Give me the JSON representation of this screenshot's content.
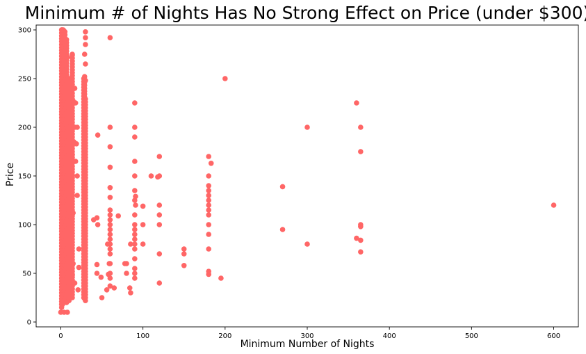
{
  "chart_data": {
    "type": "scatter",
    "title": "Minimum # of Nights Has No Strong Effect on Price (under $300)",
    "xlabel": "Minimum Number of Nights",
    "ylabel": "Price",
    "xlim": [
      -30,
      630
    ],
    "ylim": [
      -5,
      305
    ],
    "xticks": [
      0,
      100,
      200,
      300,
      400,
      500,
      600
    ],
    "yticks": [
      0,
      50,
      100,
      150,
      200,
      250,
      300
    ],
    "grid": false,
    "marker_color": "#ff6666",
    "columns": [
      {
        "x": 1,
        "min": 15,
        "max": 300
      },
      {
        "x": 2,
        "min": 18,
        "max": 300
      },
      {
        "x": 3,
        "min": 20,
        "max": 300
      },
      {
        "x": 4,
        "min": 20,
        "max": 300
      },
      {
        "x": 5,
        "min": 22,
        "max": 300
      },
      {
        "x": 7,
        "min": 20,
        "max": 290
      },
      {
        "x": 10,
        "min": 22,
        "max": 250
      },
      {
        "x": 14,
        "min": 25,
        "max": 275
      },
      {
        "x": 28,
        "min": 25,
        "max": 250
      },
      {
        "x": 29,
        "min": 24,
        "max": 250
      },
      {
        "x": 30,
        "min": 22,
        "max": 230
      }
    ],
    "points": [
      [
        0,
        10
      ],
      [
        4,
        10
      ],
      [
        8,
        10
      ],
      [
        1,
        300
      ],
      [
        2,
        300
      ],
      [
        3,
        300
      ],
      [
        5,
        295
      ],
      [
        4,
        290
      ],
      [
        6,
        285
      ],
      [
        2,
        275
      ],
      [
        7,
        273
      ],
      [
        8,
        272
      ],
      [
        14,
        275
      ],
      [
        3,
        265
      ],
      [
        5,
        258
      ],
      [
        9,
        250
      ],
      [
        10,
        238
      ],
      [
        13,
        250
      ],
      [
        12,
        225
      ],
      [
        15,
        227
      ],
      [
        17,
        240
      ],
      [
        18,
        225
      ],
      [
        11,
        200
      ],
      [
        12,
        197
      ],
      [
        17,
        200
      ],
      [
        16,
        185
      ],
      [
        14,
        172
      ],
      [
        13,
        160
      ],
      [
        20,
        200
      ],
      [
        19,
        183
      ],
      [
        18,
        165
      ],
      [
        20,
        150
      ],
      [
        20,
        130
      ],
      [
        15,
        112
      ],
      [
        12,
        105
      ],
      [
        10,
        115
      ],
      [
        22,
        75
      ],
      [
        22,
        56
      ],
      [
        15,
        60
      ],
      [
        12,
        35
      ],
      [
        14,
        48
      ],
      [
        17,
        40
      ],
      [
        21,
        33
      ],
      [
        30,
        298
      ],
      [
        30,
        292
      ],
      [
        30,
        285
      ],
      [
        29,
        275
      ],
      [
        30,
        265
      ],
      [
        29,
        252
      ],
      [
        30,
        248
      ],
      [
        40,
        105
      ],
      [
        44,
        107
      ],
      [
        45,
        100
      ],
      [
        45,
        192
      ],
      [
        44,
        59
      ],
      [
        44,
        50
      ],
      [
        49,
        46
      ],
      [
        50,
        25
      ],
      [
        56,
        33
      ],
      [
        57,
        80
      ],
      [
        58,
        49
      ],
      [
        59,
        60
      ],
      [
        60,
        292
      ],
      [
        60,
        200
      ],
      [
        60,
        180
      ],
      [
        60,
        159
      ],
      [
        60,
        138
      ],
      [
        60,
        128
      ],
      [
        60,
        115
      ],
      [
        60,
        110
      ],
      [
        60,
        105
      ],
      [
        60,
        100
      ],
      [
        60,
        95
      ],
      [
        60,
        90
      ],
      [
        60,
        85
      ],
      [
        60,
        80
      ],
      [
        60,
        75
      ],
      [
        60,
        70
      ],
      [
        60,
        60
      ],
      [
        60,
        50
      ],
      [
        60,
        45
      ],
      [
        60,
        37
      ],
      [
        65,
        35
      ],
      [
        70,
        109
      ],
      [
        78,
        60
      ],
      [
        80,
        60
      ],
      [
        80,
        50
      ],
      [
        84,
        35
      ],
      [
        85,
        30
      ],
      [
        85,
        80
      ],
      [
        90,
        225
      ],
      [
        90,
        200
      ],
      [
        90,
        190
      ],
      [
        90,
        165
      ],
      [
        90,
        150
      ],
      [
        90,
        135
      ],
      [
        91,
        129
      ],
      [
        90,
        125
      ],
      [
        91,
        120
      ],
      [
        90,
        110
      ],
      [
        90,
        100
      ],
      [
        90,
        95
      ],
      [
        90,
        90
      ],
      [
        90,
        85
      ],
      [
        90,
        80
      ],
      [
        90,
        75
      ],
      [
        90,
        65
      ],
      [
        90,
        55
      ],
      [
        90,
        50
      ],
      [
        90,
        45
      ],
      [
        100,
        119
      ],
      [
        100,
        100
      ],
      [
        100,
        80
      ],
      [
        110,
        150
      ],
      [
        118,
        149
      ],
      [
        120,
        170
      ],
      [
        120,
        150
      ],
      [
        120,
        120
      ],
      [
        120,
        110
      ],
      [
        120,
        100
      ],
      [
        120,
        70
      ],
      [
        120,
        40
      ],
      [
        150,
        75
      ],
      [
        150,
        70
      ],
      [
        150,
        58
      ],
      [
        180,
        170
      ],
      [
        180,
        150
      ],
      [
        180,
        140
      ],
      [
        180,
        135
      ],
      [
        180,
        130
      ],
      [
        180,
        125
      ],
      [
        180,
        120
      ],
      [
        180,
        115
      ],
      [
        180,
        110
      ],
      [
        180,
        100
      ],
      [
        180,
        90
      ],
      [
        180,
        75
      ],
      [
        180,
        52
      ],
      [
        180,
        49
      ],
      [
        183,
        163
      ],
      [
        195,
        45
      ],
      [
        200,
        250
      ],
      [
        270,
        139
      ],
      [
        270,
        95
      ],
      [
        300,
        200
      ],
      [
        300,
        80
      ],
      [
        360,
        225
      ],
      [
        360,
        86
      ],
      [
        365,
        200
      ],
      [
        365,
        175
      ],
      [
        365,
        100
      ],
      [
        365,
        98
      ],
      [
        365,
        84
      ],
      [
        365,
        72
      ],
      [
        600,
        120
      ]
    ]
  }
}
